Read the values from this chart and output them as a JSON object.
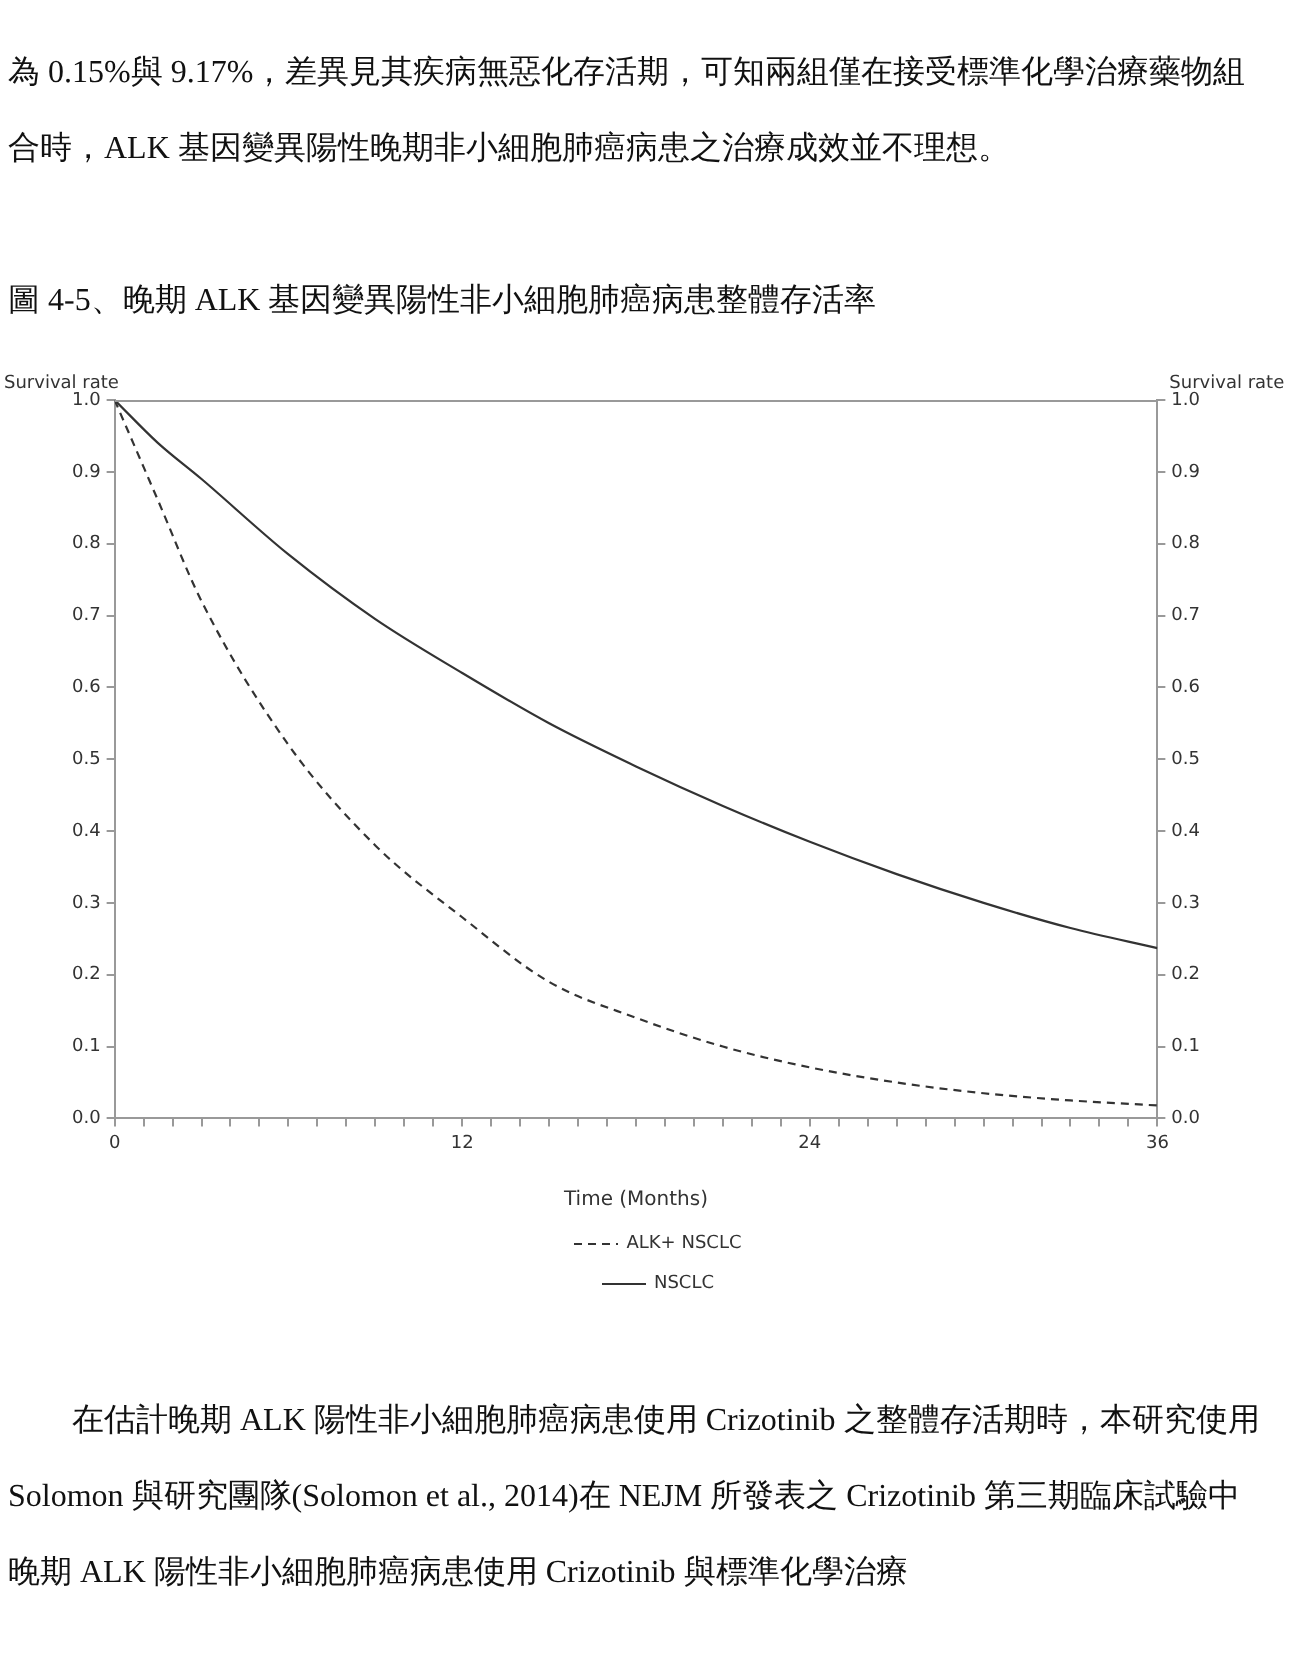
{
  "chart_data": {
    "type": "line",
    "title": "圖 4-5、晚期 ALK 基因變異陽性非小細胞肺癌病患整體存活率",
    "annotations": [
      "為 0.15%與 9.17%，差異見其疾病無惡化存活期，可知兩組僅在接受標準化學治療藥物組合時，ALK 基因變異陽性晚期非小細胞肺癌病患之治療成效並不理想。",
      "在估計晚期 ALK 陽性非小細胞肺癌病患使用 Crizotinib 之整體存活期時，本研究使用 Solomon 與研究團隊(Solomon et al., 2014)在 NEJM 所發表之 Crizotinib 第三期臨床試驗中晚期 ALK 陽性非小細胞肺癌病患使用 Crizotinib 與標準化學治療"
    ],
    "xlabel": "Time (Months)",
    "ylabel": "Survival rate",
    "y2label": "Survival rate",
    "x": [
      0,
      1.5,
      3,
      6,
      9,
      12,
      15,
      18,
      21,
      24,
      27,
      30,
      33,
      36
    ],
    "series": [
      {
        "name": "ALK+ NSCLC",
        "color": "#333333",
        "line_style": "dashed",
        "values": [
          1.0,
          0.86,
          0.72,
          0.52,
          0.38,
          0.28,
          0.19,
          0.14,
          0.1,
          0.071,
          0.05,
          0.035,
          0.025,
          0.018
        ]
      },
      {
        "name": "NSCLC",
        "color": "#333333",
        "line_style": "solid",
        "values": [
          1.0,
          0.94,
          0.89,
          0.785,
          0.695,
          0.62,
          0.55,
          0.49,
          0.435,
          0.385,
          0.34,
          0.3,
          0.265,
          0.237
        ]
      }
    ],
    "xlim": [
      0,
      36
    ],
    "xticks": [
      0,
      {
        "value": 1,
        "label": null
      },
      {
        "value": 2,
        "label": null
      },
      {
        "value": 3,
        "label": null
      },
      {
        "value": 4,
        "label": null
      },
      {
        "value": 5,
        "label": null
      },
      {
        "value": 6,
        "label": null
      },
      {
        "value": 7,
        "label": null
      },
      {
        "value": 8,
        "label": null
      },
      {
        "value": 9,
        "label": null
      },
      {
        "value": 10,
        "label": null
      },
      {
        "value": 11,
        "label": null
      },
      12,
      {
        "value": 13,
        "label": null
      },
      {
        "value": 14,
        "label": null
      },
      {
        "value": 15,
        "label": null
      },
      {
        "value": 16,
        "label": null
      },
      {
        "value": 17,
        "label": null
      },
      {
        "value": 18,
        "label": null
      },
      {
        "value": 19,
        "label": null
      },
      {
        "value": 20,
        "label": null
      },
      {
        "value": 21,
        "label": null
      },
      {
        "value": 22,
        "label": null
      },
      {
        "value": 23,
        "label": null
      },
      24,
      {
        "value": 25,
        "label": null
      },
      {
        "value": 26,
        "label": null
      },
      {
        "value": 27,
        "label": null
      },
      {
        "value": 28,
        "label": null
      },
      {
        "value": 29,
        "label": null
      },
      {
        "value": 30,
        "label": null
      },
      {
        "value": 31,
        "label": null
      },
      {
        "value": 32,
        "label": null
      },
      {
        "value": 33,
        "label": null
      },
      {
        "value": 34,
        "label": null
      },
      {
        "value": 35,
        "label": null
      },
      36
    ],
    "ylim": [
      0,
      1
    ],
    "yticks": [
      {
        "value": 0,
        "label": "0.0"
      },
      {
        "value": 0.1,
        "label": "0.1"
      },
      {
        "value": 0.2,
        "label": "0.2"
      },
      {
        "value": 0.3,
        "label": "0.3"
      },
      {
        "value": 0.4,
        "label": "0.4"
      },
      {
        "value": 0.5,
        "label": "0.5"
      },
      {
        "value": 0.6,
        "label": "0.6"
      },
      {
        "value": 0.7,
        "label": "0.7"
      },
      {
        "value": 0.8,
        "label": "0.8"
      },
      {
        "value": 0.9,
        "label": "0.9"
      },
      {
        "value": 1,
        "label": "1.0"
      }
    ],
    "y2lim": [
      0,
      1
    ],
    "y2ticks": [
      {
        "value": 0,
        "label": "0.0"
      },
      {
        "value": 0.1,
        "label": "0.1"
      },
      {
        "value": 0.2,
        "label": "0.2"
      },
      {
        "value": 0.3,
        "label": "0.3"
      },
      {
        "value": 0.4,
        "label": "0.4"
      },
      {
        "value": 0.5,
        "label": "0.5"
      },
      {
        "value": 0.6,
        "label": "0.6"
      },
      {
        "value": 0.7,
        "label": "0.7"
      },
      {
        "value": 0.8,
        "label": "0.8"
      },
      {
        "value": 0.9,
        "label": "0.9"
      },
      {
        "value": 1,
        "label": "1.0"
      }
    ],
    "grid": false,
    "legend": "bottom",
    "marker": "none"
  }
}
